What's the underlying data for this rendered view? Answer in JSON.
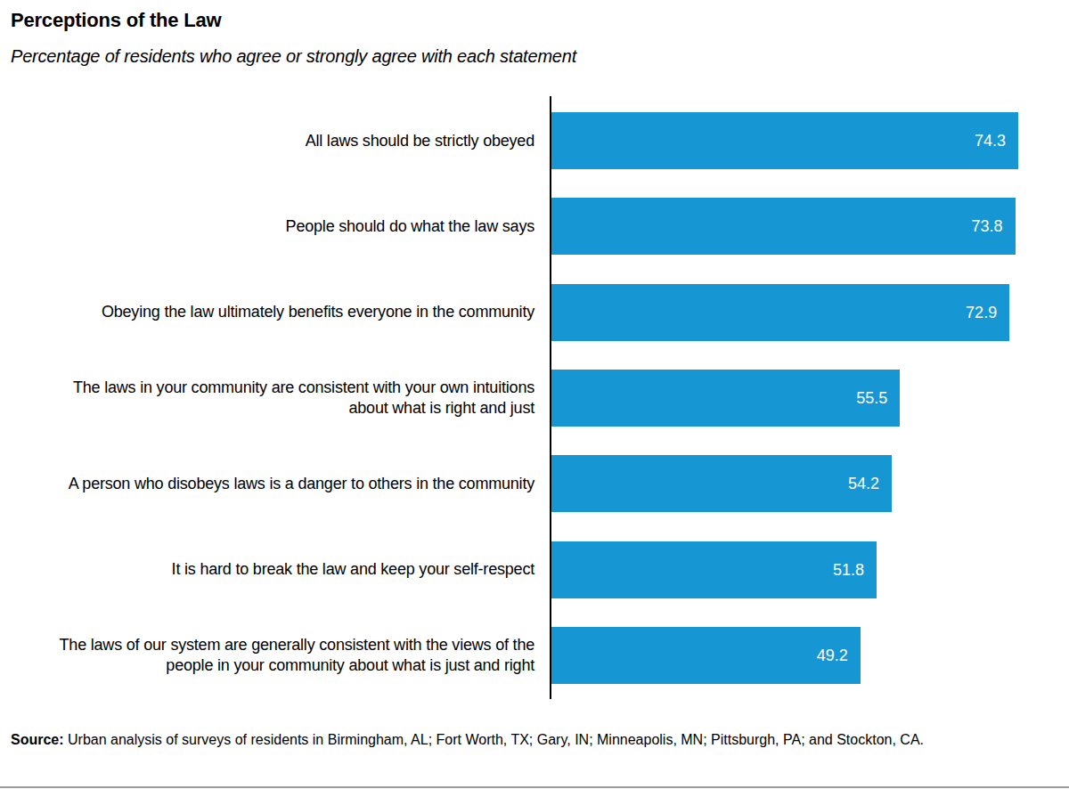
{
  "chart_data": {
    "type": "bar",
    "orientation": "horizontal",
    "title": "Perceptions of the Law",
    "subtitle": "Percentage of residents who agree or strongly agree with each statement",
    "categories": [
      "All laws should be strictly obeyed",
      "People should do what the law says",
      "Obeying the law ultimately benefits everyone in the community",
      "The laws in your community are consistent with your own intuitions about what is right and just",
      "A person who disobeys laws is a danger to others in the community",
      "It is hard to break the law and keep your self-respect",
      "The laws of our system are generally consistent with the views of the people in your community about what is just and right"
    ],
    "values": [
      74.3,
      73.8,
      72.9,
      55.5,
      54.2,
      51.8,
      49.2
    ],
    "color": "#1696d2",
    "xlim": [
      0,
      75
    ],
    "data_labels": true,
    "tick_labels": "y",
    "grid": false,
    "source_label": "Source:",
    "source": "Urban analysis of surveys of residents in Birmingham, AL; Fort Worth, TX; Gary, IN; Minneapolis, MN; Pittsburgh, PA; and Stockton, CA."
  }
}
